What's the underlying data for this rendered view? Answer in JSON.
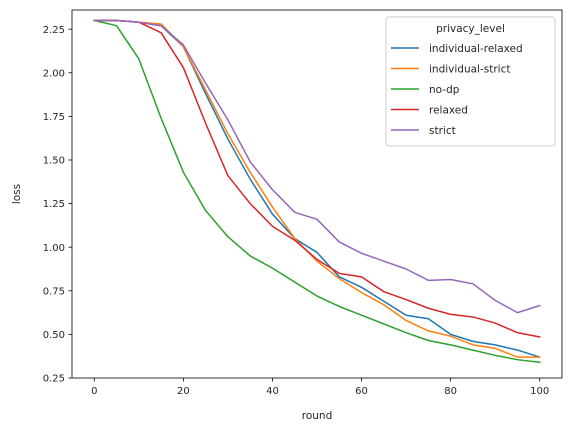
{
  "chart_data": {
    "type": "line",
    "xlabel": "round",
    "ylabel": "loss",
    "xlim": [
      -5,
      105
    ],
    "ylim": [
      0.25,
      2.36
    ],
    "xticks": [
      0,
      20,
      40,
      60,
      80,
      100
    ],
    "xtick_labels": [
      "0",
      "20",
      "40",
      "60",
      "80",
      "100"
    ],
    "yticks": [
      0.25,
      0.5,
      0.75,
      1.0,
      1.25,
      1.5,
      1.75,
      2.0,
      2.25
    ],
    "ytick_labels": [
      "0.25",
      "0.50",
      "0.75",
      "1.00",
      "1.25",
      "1.50",
      "1.75",
      "2.00",
      "2.25"
    ],
    "grid": false,
    "legend": {
      "title": "privacy_level",
      "placement": "top-right"
    },
    "x": [
      0,
      5,
      10,
      15,
      20,
      25,
      30,
      35,
      40,
      45,
      50,
      55,
      60,
      65,
      70,
      75,
      80,
      85,
      90,
      95,
      100
    ],
    "series": [
      {
        "name": "individual-relaxed",
        "color": "#1f77b4",
        "values": [
          2.3,
          2.3,
          2.29,
          2.27,
          2.15,
          1.88,
          1.62,
          1.39,
          1.19,
          1.05,
          0.97,
          0.83,
          0.77,
          0.69,
          0.61,
          0.59,
          0.5,
          0.46,
          0.44,
          0.41,
          0.37
        ]
      },
      {
        "name": "individual-strict",
        "color": "#ff7f0e",
        "values": [
          2.3,
          2.3,
          2.29,
          2.28,
          2.15,
          1.9,
          1.65,
          1.43,
          1.23,
          1.05,
          0.92,
          0.82,
          0.74,
          0.67,
          0.58,
          0.52,
          0.49,
          0.44,
          0.42,
          0.37,
          0.37
        ]
      },
      {
        "name": "no-dp",
        "color": "#2ca02c",
        "values": [
          2.3,
          2.27,
          2.08,
          1.74,
          1.43,
          1.21,
          1.06,
          0.95,
          0.88,
          0.8,
          0.72,
          0.66,
          0.61,
          0.56,
          0.51,
          0.465,
          0.44,
          0.41,
          0.38,
          0.355,
          0.34
        ]
      },
      {
        "name": "relaxed",
        "color": "#d62728",
        "values": [
          2.3,
          2.3,
          2.29,
          2.23,
          2.03,
          1.71,
          1.41,
          1.25,
          1.12,
          1.04,
          0.93,
          0.85,
          0.83,
          0.745,
          0.7,
          0.65,
          0.615,
          0.6,
          0.565,
          0.51,
          0.485
        ]
      },
      {
        "name": "strict",
        "color": "#9467bd",
        "values": [
          2.3,
          2.3,
          2.29,
          2.27,
          2.16,
          1.94,
          1.73,
          1.49,
          1.33,
          1.2,
          1.16,
          1.03,
          0.965,
          0.92,
          0.875,
          0.81,
          0.815,
          0.79,
          0.695,
          0.625,
          0.665
        ]
      }
    ]
  }
}
